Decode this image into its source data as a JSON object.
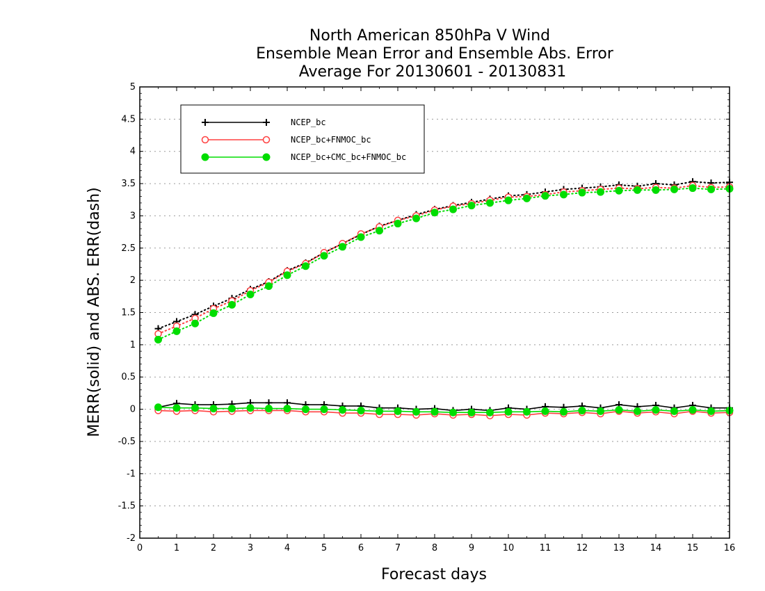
{
  "chart_data": {
    "type": "line",
    "title": [
      "North American 850hPa V Wind",
      "Ensemble Mean Error and Ensemble Abs. Error",
      "Average For 20130601 - 20130831"
    ],
    "xlabel": "Forecast days",
    "ylabel": "MERR(solid) and ABS. ERR(dash)",
    "xlim": [
      0,
      16
    ],
    "ylim": [
      -2,
      5
    ],
    "x_ticks": [
      "0",
      "1",
      "2",
      "3",
      "4",
      "5",
      "6",
      "7",
      "8",
      "9",
      "10",
      "11",
      "12",
      "13",
      "14",
      "15",
      "16"
    ],
    "y_ticks": [
      "5",
      "4.5",
      "4",
      "3.5",
      "3",
      "2.5",
      "2",
      "1.5",
      "1",
      "0.5",
      "0",
      "-0.5",
      "-1",
      "-1.5",
      "-2"
    ],
    "grid": "horizontal-dotted",
    "legend_position": "top-left",
    "x": [
      0.5,
      1,
      1.5,
      2,
      2.5,
      3,
      3.5,
      4,
      4.5,
      5,
      5.5,
      6,
      6.5,
      7,
      7.5,
      8,
      8.5,
      9,
      9.5,
      10,
      10.5,
      11,
      11.5,
      12,
      12.5,
      13,
      13.5,
      14,
      14.5,
      15,
      15.5,
      16
    ],
    "series": [
      {
        "name": "NCEP_bc",
        "color": "#000000",
        "marker": "plus",
        "merr": [
          0.03,
          0.09,
          0.07,
          0.07,
          0.08,
          0.1,
          0.1,
          0.1,
          0.07,
          0.07,
          0.05,
          0.05,
          0.02,
          0.02,
          0.0,
          0.01,
          -0.02,
          0.0,
          -0.02,
          0.02,
          0.0,
          0.04,
          0.03,
          0.05,
          0.02,
          0.07,
          0.04,
          0.06,
          0.02,
          0.06,
          0.02,
          0.02
        ],
        "abs_err": [
          1.25,
          1.36,
          1.47,
          1.6,
          1.72,
          1.86,
          1.98,
          2.15,
          2.27,
          2.43,
          2.57,
          2.71,
          2.84,
          2.93,
          3.02,
          3.1,
          3.16,
          3.21,
          3.26,
          3.31,
          3.33,
          3.37,
          3.41,
          3.43,
          3.45,
          3.48,
          3.46,
          3.5,
          3.48,
          3.53,
          3.51,
          3.52
        ]
      },
      {
        "name": "NCEP_bc+FNMOC_bc",
        "color": "#ff4040",
        "marker": "open-circle",
        "merr": [
          -0.02,
          -0.03,
          -0.02,
          -0.04,
          -0.03,
          -0.02,
          -0.02,
          -0.02,
          -0.04,
          -0.04,
          -0.06,
          -0.06,
          -0.08,
          -0.08,
          -0.09,
          -0.07,
          -0.09,
          -0.08,
          -0.1,
          -0.08,
          -0.09,
          -0.06,
          -0.07,
          -0.05,
          -0.07,
          -0.03,
          -0.06,
          -0.04,
          -0.07,
          -0.03,
          -0.06,
          -0.05
        ],
        "abs_err": [
          1.17,
          1.29,
          1.41,
          1.56,
          1.68,
          1.84,
          1.97,
          2.14,
          2.26,
          2.43,
          2.57,
          2.72,
          2.83,
          2.93,
          3.0,
          3.09,
          3.15,
          3.19,
          3.24,
          3.29,
          3.3,
          3.33,
          3.37,
          3.39,
          3.41,
          3.43,
          3.42,
          3.44,
          3.43,
          3.47,
          3.44,
          3.45
        ]
      },
      {
        "name": "NCEP_bc+CMC_bc+FNMOC_bc",
        "color": "#00dd00",
        "marker": "filled-circle",
        "merr": [
          0.03,
          0.02,
          0.02,
          0.01,
          0.01,
          0.02,
          0.01,
          0.01,
          0.0,
          0.0,
          -0.01,
          -0.02,
          -0.03,
          -0.03,
          -0.04,
          -0.04,
          -0.05,
          -0.05,
          -0.05,
          -0.04,
          -0.04,
          -0.03,
          -0.04,
          -0.02,
          -0.03,
          -0.01,
          -0.03,
          -0.01,
          -0.03,
          -0.01,
          -0.03,
          -0.02
        ],
        "abs_err": [
          1.08,
          1.21,
          1.33,
          1.49,
          1.62,
          1.78,
          1.91,
          2.08,
          2.22,
          2.38,
          2.52,
          2.67,
          2.77,
          2.88,
          2.96,
          3.05,
          3.1,
          3.16,
          3.2,
          3.24,
          3.27,
          3.31,
          3.33,
          3.36,
          3.37,
          3.39,
          3.4,
          3.4,
          3.41,
          3.43,
          3.41,
          3.42
        ]
      }
    ]
  }
}
